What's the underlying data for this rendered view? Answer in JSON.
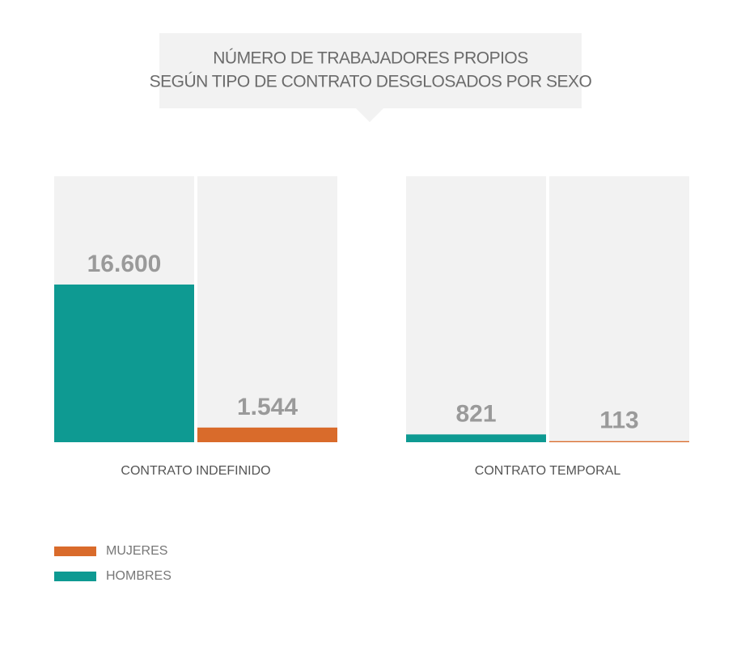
{
  "chart_data": {
    "type": "bar",
    "title": [
      "NÚMERO DE TRABAJADORES PROPIOS",
      "SEGÚN TIPO DE CONTRATO DESGLOSADOS POR SEXO"
    ],
    "categories": [
      "CONTRATO INDEFINIDO",
      "CONTRATO TEMPORAL"
    ],
    "series": [
      {
        "name": "HOMBRES",
        "color": "#0e9a92",
        "values": [
          16600,
          821
        ],
        "value_labels": [
          "16.600",
          "821"
        ]
      },
      {
        "name": "MUJERES",
        "color": "#d96b2b",
        "values": [
          1544,
          113
        ],
        "value_labels": [
          "1.544",
          "113"
        ]
      }
    ],
    "ylim": [
      0,
      28000
    ]
  }
}
